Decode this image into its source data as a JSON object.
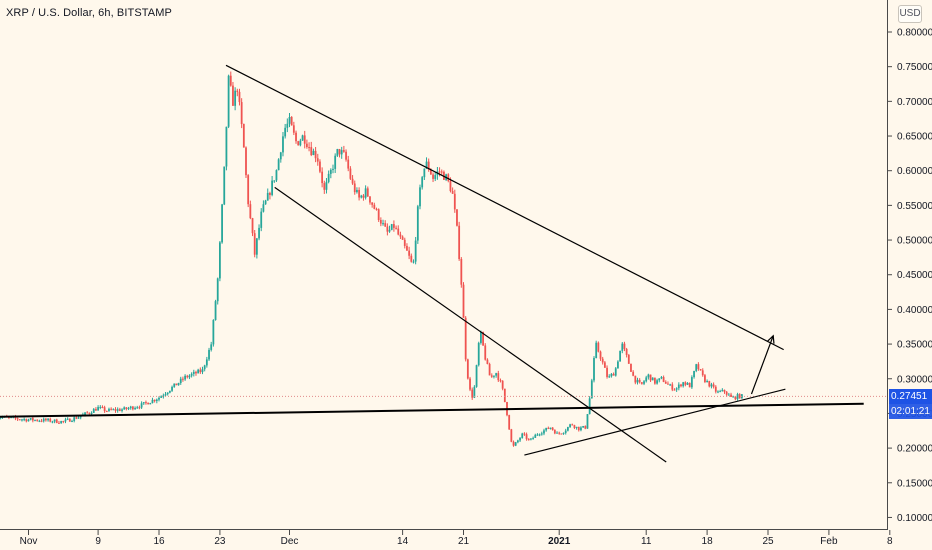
{
  "header": {
    "title": "XRP / U.S. Dollar, 6h, BITSTAMP",
    "currency_button": "USD"
  },
  "price_tags": {
    "last_price": "0.27451",
    "countdown": "02:01:21"
  },
  "colors": {
    "background": "#fff8ec",
    "up_candle": "#26a69a",
    "down_candle": "#ef5350",
    "trendline": "#000000",
    "axis_text": "#131722",
    "price_tag": "#1e53e5"
  },
  "chart_data": {
    "type": "candlestick",
    "symbol": "XRP / U.S. Dollar",
    "interval": "6h",
    "exchange": "BITSTAMP",
    "ylim": [
      0.08,
      0.82
    ],
    "y_ticks": [
      "0.80000",
      "0.75000",
      "0.70000",
      "0.65000",
      "0.60000",
      "0.55000",
      "0.50000",
      "0.45000",
      "0.40000",
      "0.35000",
      "0.30000",
      "0.25000",
      "0.20000",
      "0.15000",
      "0.10000"
    ],
    "x_ticks": [
      {
        "label": "Nov",
        "day": 0
      },
      {
        "label": "9",
        "day": 8
      },
      {
        "label": "16",
        "day": 15
      },
      {
        "label": "23",
        "day": 22
      },
      {
        "label": "Dec",
        "day": 30
      },
      {
        "label": "14",
        "day": 43
      },
      {
        "label": "21",
        "day": 50
      },
      {
        "label": "2021",
        "day": 61,
        "bold": true
      },
      {
        "label": "11",
        "day": 71
      },
      {
        "label": "18",
        "day": 78
      },
      {
        "label": "25",
        "day": 85
      },
      {
        "label": "Feb",
        "day": 92
      },
      {
        "label": "8",
        "day": 99
      }
    ],
    "close_path": [
      [
        -4,
        0.246
      ],
      [
        -2,
        0.243
      ],
      [
        0,
        0.241
      ],
      [
        2,
        0.24
      ],
      [
        4,
        0.238
      ],
      [
        6,
        0.246
      ],
      [
        8,
        0.258
      ],
      [
        9,
        0.254
      ],
      [
        11,
        0.256
      ],
      [
        13,
        0.262
      ],
      [
        15,
        0.273
      ],
      [
        17,
        0.292
      ],
      [
        18,
        0.302
      ],
      [
        20,
        0.312
      ],
      [
        21,
        0.35
      ],
      [
        21.8,
        0.45
      ],
      [
        22.5,
        0.6
      ],
      [
        23,
        0.73
      ],
      [
        23.5,
        0.7
      ],
      [
        24,
        0.72
      ],
      [
        24.7,
        0.64
      ],
      [
        25.2,
        0.56
      ],
      [
        26,
        0.48
      ],
      [
        26.8,
        0.54
      ],
      [
        27.6,
        0.565
      ],
      [
        28.5,
        0.6
      ],
      [
        29.4,
        0.66
      ],
      [
        30,
        0.67
      ],
      [
        30.8,
        0.64
      ],
      [
        31.6,
        0.65
      ],
      [
        32.5,
        0.63
      ],
      [
        33.2,
        0.62
      ],
      [
        34,
        0.57
      ],
      [
        34.8,
        0.6
      ],
      [
        35.6,
        0.63
      ],
      [
        36.4,
        0.62
      ],
      [
        37.2,
        0.58
      ],
      [
        38,
        0.56
      ],
      [
        38.8,
        0.57
      ],
      [
        39.6,
        0.55
      ],
      [
        40.4,
        0.53
      ],
      [
        41.2,
        0.51
      ],
      [
        42,
        0.52
      ],
      [
        42.8,
        0.5
      ],
      [
        43.6,
        0.48
      ],
      [
        44.2,
        0.46
      ],
      [
        44.8,
        0.55
      ],
      [
        45.3,
        0.6
      ],
      [
        45.8,
        0.61
      ],
      [
        46.5,
        0.59
      ],
      [
        47.2,
        0.6
      ],
      [
        48,
        0.59
      ],
      [
        48.7,
        0.57
      ],
      [
        49.3,
        0.51
      ],
      [
        49.8,
        0.43
      ],
      [
        50.3,
        0.32
      ],
      [
        50.9,
        0.27
      ],
      [
        51.3,
        0.29
      ],
      [
        51.9,
        0.37
      ],
      [
        52.5,
        0.33
      ],
      [
        53.1,
        0.3
      ],
      [
        53.7,
        0.31
      ],
      [
        54.4,
        0.29
      ],
      [
        55,
        0.25
      ],
      [
        55.6,
        0.2
      ],
      [
        56.2,
        0.21
      ],
      [
        56.8,
        0.22
      ],
      [
        57.6,
        0.21
      ],
      [
        58.4,
        0.22
      ],
      [
        59.2,
        0.225
      ],
      [
        60,
        0.23
      ],
      [
        60.8,
        0.22
      ],
      [
        61.6,
        0.225
      ],
      [
        62.4,
        0.235
      ],
      [
        63.2,
        0.228
      ],
      [
        64,
        0.23
      ],
      [
        64.6,
        0.28
      ],
      [
        65.2,
        0.35
      ],
      [
        65.8,
        0.33
      ],
      [
        66.6,
        0.3
      ],
      [
        67.4,
        0.31
      ],
      [
        68.2,
        0.35
      ],
      [
        68.8,
        0.33
      ],
      [
        69.6,
        0.3
      ],
      [
        70.4,
        0.29
      ],
      [
        71.2,
        0.305
      ],
      [
        72,
        0.295
      ],
      [
        72.8,
        0.3
      ],
      [
        73.6,
        0.29
      ],
      [
        74.4,
        0.285
      ],
      [
        75.2,
        0.295
      ],
      [
        76,
        0.29
      ],
      [
        76.8,
        0.32
      ],
      [
        77.6,
        0.3
      ],
      [
        78.4,
        0.29
      ],
      [
        79.2,
        0.28
      ],
      [
        80,
        0.282
      ],
      [
        80.8,
        0.272
      ],
      [
        81.6,
        0.275
      ],
      [
        82.2,
        0.2745
      ]
    ],
    "drawings": [
      {
        "name": "upper-trendline",
        "points": [
          [
            22.7,
            0.752
          ],
          [
            86.8,
            0.342
          ]
        ]
      },
      {
        "name": "channel-lower-line",
        "points": [
          [
            28.3,
            0.576
          ],
          [
            73.3,
            0.18
          ]
        ]
      },
      {
        "name": "horizontal-support-line",
        "points": [
          [
            -4,
            0.245
          ],
          [
            96,
            0.264
          ]
        ]
      },
      {
        "name": "rising-support-line",
        "points": [
          [
            57,
            0.19
          ],
          [
            87,
            0.285
          ]
        ]
      },
      {
        "name": "projection-arrow",
        "points": [
          [
            83.1,
            0.278
          ],
          [
            85.6,
            0.362
          ]
        ]
      }
    ],
    "last_price": 0.27451,
    "grid": false,
    "legend": "none"
  }
}
